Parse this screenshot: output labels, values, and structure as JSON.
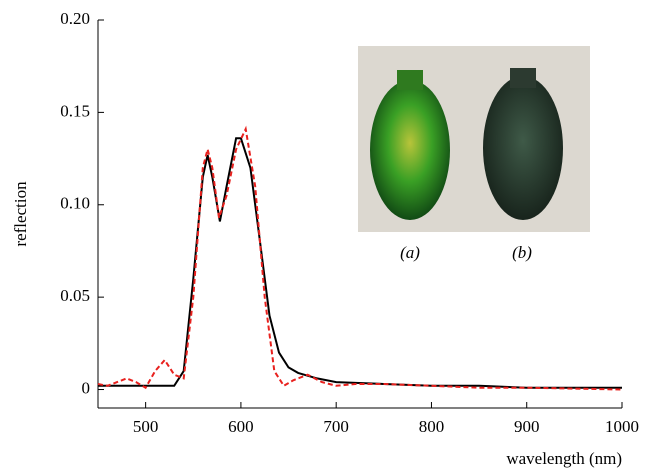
{
  "chart_data": {
    "type": "line",
    "x_label": "wavelength (nm)",
    "y_label": "reflection",
    "annotations": [
      "(a)",
      "(b)"
    ],
    "xlim": [
      450,
      1000
    ],
    "xticks": [
      500,
      600,
      700,
      800,
      900,
      1000
    ],
    "ylim": [
      -0.01,
      0.2
    ],
    "yticks": [
      0,
      0.05,
      {
        "value": 0.1,
        "label": "0.10"
      },
      0.15,
      {
        "value": 0.2,
        "label": "0.20"
      }
    ],
    "series": [
      {
        "color": "#000000",
        "dash": false,
        "x": [
          450,
          480,
          510,
          530,
          540,
          550,
          560,
          565,
          570,
          578,
          585,
          595,
          600,
          610,
          620,
          630,
          640,
          650,
          660,
          680,
          700,
          750,
          800,
          850,
          900,
          950,
          1000
        ],
        "values": [
          0.002,
          0.002,
          0.002,
          0.002,
          0.01,
          0.06,
          0.115,
          0.127,
          0.115,
          0.091,
          0.11,
          0.136,
          0.136,
          0.12,
          0.08,
          0.04,
          0.02,
          0.012,
          0.009,
          0.006,
          0.004,
          0.003,
          0.002,
          0.002,
          0.001,
          0.001,
          0.001
        ]
      },
      {
        "color": "#e8211e",
        "dash": true,
        "x": [
          450,
          460,
          470,
          480,
          490,
          500,
          510,
          520,
          530,
          540,
          550,
          560,
          565,
          570,
          577,
          585,
          595,
          605,
          615,
          625,
          635,
          645,
          655,
          670,
          685,
          700,
          720,
          750,
          800,
          850,
          900,
          1000
        ],
        "values": [
          0.003,
          0.002,
          0.004,
          0.006,
          0.004,
          0.001,
          0.01,
          0.016,
          0.008,
          0.006,
          0.05,
          0.12,
          0.13,
          0.12,
          0.093,
          0.105,
          0.13,
          0.141,
          0.11,
          0.05,
          0.01,
          0.002,
          0.005,
          0.008,
          0.004,
          0.002,
          0.003,
          0.003,
          0.002,
          0.001,
          0.001,
          0
        ]
      }
    ]
  }
}
